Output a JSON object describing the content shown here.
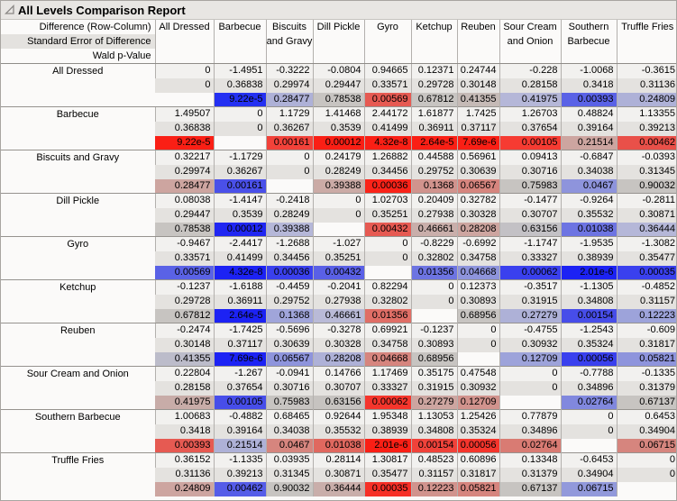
{
  "window": {
    "title": "All Levels Comparison Report"
  },
  "colors": {
    "titlebar_bg": "#e8e6e3",
    "diff_row_bg": "#f2f1ef",
    "se_row_bg": "#e4e2df",
    "neutral_p_bg": "#c7c4c1",
    "max_red": "#fa1f15",
    "max_blue": "#1c22f4"
  },
  "table": {
    "corner_lines": [
      "Difference (Row-Column)",
      "Standard Error of Difference",
      "Wald p-Value"
    ],
    "columns": [
      "All Dressed",
      "Barbecue",
      "Biscuits and Gravy",
      "Dill Pickle",
      "Gyro",
      "Ketchup",
      "Reuben",
      "Sour Cream and Onion",
      "Southern Barbecue",
      "Truffle Fries"
    ],
    "rows": [
      {
        "label": "All Dressed",
        "d": [
          "0",
          "-1.4951",
          "-0.3222",
          "-0.0804",
          "0.94665",
          "0.12371",
          "0.24744",
          "-0.228",
          "-1.0068",
          "-0.3615"
        ],
        "se": [
          "0",
          "0.36838",
          "0.29974",
          "0.29447",
          "0.33571",
          "0.29728",
          "0.30148",
          "0.28158",
          "0.3418",
          "0.31136"
        ],
        "p": [
          "",
          "9.22e-5",
          "0.28477",
          "0.78538",
          "0.00569",
          "0.67812",
          "0.41355",
          "0.41975",
          "0.00393",
          "0.24809"
        ],
        "pc": [
          "",
          "#2430f2",
          "#aeb1d7",
          "#c7c4c1",
          "#e65a52",
          "#c7c4c1",
          "#c5bab6",
          "#b5b7d8",
          "#5a62e6",
          "#aeb1d7"
        ]
      },
      {
        "label": "Barbecue",
        "d": [
          "1.49507",
          "0",
          "1.1729",
          "1.41468",
          "2.44172",
          "1.61877",
          "1.7425",
          "1.26703",
          "0.48824",
          "1.13355"
        ],
        "se": [
          "0.36838",
          "0",
          "0.36267",
          "0.3539",
          "0.41499",
          "0.36911",
          "0.37117",
          "0.37654",
          "0.39164",
          "0.39213"
        ],
        "p": [
          "9.22e-5",
          "",
          "0.00161",
          "0.00012",
          "4.32e-8",
          "2.64e-5",
          "7.69e-6",
          "0.00105",
          "0.21514",
          "0.00462"
        ],
        "pc": [
          "#fa1f15",
          "",
          "#f2423a",
          "#fa1f15",
          "#fa1f15",
          "#fa1f15",
          "#fa1f15",
          "#f63b32",
          "#cda5a0",
          "#e95049"
        ]
      },
      {
        "label": "Biscuits and Gravy",
        "d": [
          "0.32217",
          "-1.1729",
          "0",
          "0.24179",
          "1.26882",
          "0.44588",
          "0.56961",
          "0.09413",
          "-0.6847",
          "-0.0393"
        ],
        "se": [
          "0.29974",
          "0.36267",
          "0",
          "0.28249",
          "0.34456",
          "0.29752",
          "0.30639",
          "0.30716",
          "0.34038",
          "0.31345"
        ],
        "p": [
          "0.28477",
          "0.00161",
          "",
          "0.39388",
          "0.00036",
          "0.1368",
          "0.06567",
          "0.75983",
          "0.0467",
          "0.90032"
        ],
        "pc": [
          "#cda5a0",
          "#4a50e9",
          "",
          "#cbaba6",
          "#fa2319",
          "#d1938d",
          "#d6857e",
          "#c7c4c1",
          "#8e94dc",
          "#c7c4c1"
        ]
      },
      {
        "label": "Dill Pickle",
        "d": [
          "0.08038",
          "-1.4147",
          "-0.2418",
          "0",
          "1.02703",
          "0.20409",
          "0.32782",
          "-0.1477",
          "-0.9264",
          "-0.2811"
        ],
        "se": [
          "0.29447",
          "0.3539",
          "0.28249",
          "0",
          "0.35251",
          "0.27938",
          "0.30328",
          "0.30707",
          "0.35532",
          "0.30871"
        ],
        "p": [
          "0.78538",
          "0.00012",
          "0.39388",
          "",
          "0.00432",
          "0.46661",
          "0.28208",
          "0.63156",
          "0.01038",
          "0.36444"
        ],
        "pc": [
          "#c7c4c1",
          "#2026f2",
          "#b5b7d8",
          "",
          "#e65a52",
          "#c9aeaa",
          "#cda5a0",
          "#c3c1c5",
          "#6d74e2",
          "#b5b7d8"
        ]
      },
      {
        "label": "Gyro",
        "d": [
          "-0.9467",
          "-2.4417",
          "-1.2688",
          "-1.027",
          "0",
          "-0.8229",
          "-0.6992",
          "-1.1747",
          "-1.9535",
          "-1.3082"
        ],
        "se": [
          "0.33571",
          "0.41499",
          "0.34456",
          "0.35251",
          "0",
          "0.32802",
          "0.34758",
          "0.33327",
          "0.38939",
          "0.35477"
        ],
        "p": [
          "0.00569",
          "4.32e-8",
          "0.00036",
          "0.00432",
          "",
          "0.01356",
          "0.04668",
          "0.00062",
          "2.01e-6",
          "0.00035"
        ],
        "pc": [
          "#5a62e6",
          "#1c22f4",
          "#3a40ee",
          "#5a60e6",
          "",
          "#6d74e2",
          "#8e94dc",
          "#3a40ee",
          "#1c22f4",
          "#3a40ee"
        ]
      },
      {
        "label": "Ketchup",
        "d": [
          "-0.1237",
          "-1.6188",
          "-0.4459",
          "-0.2041",
          "0.82294",
          "0",
          "0.12373",
          "-0.3517",
          "-1.1305",
          "-0.4852"
        ],
        "se": [
          "0.29728",
          "0.36911",
          "0.29752",
          "0.27938",
          "0.32802",
          "0",
          "0.30893",
          "0.31915",
          "0.34808",
          "0.31157"
        ],
        "p": [
          "0.67812",
          "2.64e-5",
          "0.1368",
          "0.46661",
          "0.01356",
          "",
          "0.68956",
          "0.27279",
          "0.00154",
          "0.12223"
        ],
        "pc": [
          "#c7c4c1",
          "#1c22f4",
          "#a0a5da",
          "#b9bad7",
          "#e06e66",
          "",
          "#c7c4c1",
          "#aeb1d7",
          "#474de9",
          "#9da3da"
        ]
      },
      {
        "label": "Reuben",
        "d": [
          "-0.2474",
          "-1.7425",
          "-0.5696",
          "-0.3278",
          "0.69921",
          "-0.1237",
          "0",
          "-0.4755",
          "-1.2543",
          "-0.609"
        ],
        "se": [
          "0.30148",
          "0.37117",
          "0.30639",
          "0.30328",
          "0.34758",
          "0.30893",
          "0",
          "0.30932",
          "0.35324",
          "0.31817"
        ],
        "p": [
          "0.41355",
          "7.69e-6",
          "0.06567",
          "0.28208",
          "0.04668",
          "0.68956",
          "",
          "0.12709",
          "0.00056",
          "0.05821"
        ],
        "pc": [
          "#bcbcca",
          "#1c22f4",
          "#8e94dc",
          "#aeb1d7",
          "#d6857e",
          "#c7c4c1",
          "",
          "#9da3da",
          "#3a40ee",
          "#8e94dc"
        ]
      },
      {
        "label": "Sour Cream and Onion",
        "d": [
          "0.22804",
          "-1.267",
          "-0.0941",
          "0.14766",
          "1.17469",
          "0.35175",
          "0.47548",
          "0",
          "-0.7788",
          "-0.1335"
        ],
        "se": [
          "0.28158",
          "0.37654",
          "0.30716",
          "0.30707",
          "0.33327",
          "0.31915",
          "0.30932",
          "0",
          "0.34896",
          "0.31379"
        ],
        "p": [
          "0.41975",
          "0.00105",
          "0.75983",
          "0.63156",
          "0.00062",
          "0.27279",
          "0.12709",
          "",
          "0.02764",
          "0.67137"
        ],
        "pc": [
          "#c8aca8",
          "#474de9",
          "#c7c4c1",
          "#c6c3c0",
          "#f5352c",
          "#cda5a0",
          "#d1938d",
          "",
          "#8188de",
          "#c7c4c1"
        ]
      },
      {
        "label": "Southern Barbecue",
        "d": [
          "1.00683",
          "-0.4882",
          "0.68465",
          "0.92644",
          "1.95348",
          "1.13053",
          "1.25426",
          "0.77879",
          "0",
          "0.6453"
        ],
        "se": [
          "0.3418",
          "0.39164",
          "0.34038",
          "0.35532",
          "0.38939",
          "0.34808",
          "0.35324",
          "0.34896",
          "0",
          "0.34904"
        ],
        "p": [
          "0.00393",
          "0.21514",
          "0.0467",
          "0.01038",
          "2.01e-6",
          "0.00154",
          "0.00056",
          "0.02764",
          "",
          "0.06715"
        ],
        "pc": [
          "#e65a52",
          "#aeb1d7",
          "#d6857e",
          "#e0685f",
          "#fa1f15",
          "#f0423a",
          "#f5352c",
          "#d97b73",
          "",
          "#d6857e"
        ]
      },
      {
        "label": "Truffle Fries",
        "d": [
          "0.36152",
          "-1.1335",
          "0.03935",
          "0.28114",
          "1.30817",
          "0.48523",
          "0.60896",
          "0.13348",
          "-0.6453",
          "0"
        ],
        "se": [
          "0.31136",
          "0.39213",
          "0.31345",
          "0.30871",
          "0.35477",
          "0.31157",
          "0.31817",
          "0.31379",
          "0.34904",
          "0"
        ],
        "p": [
          "0.24809",
          "0.00462",
          "0.90032",
          "0.36444",
          "0.00035",
          "0.12223",
          "0.05821",
          "0.67137",
          "0.06715",
          ""
        ],
        "pc": [
          "#cda5a0",
          "#555ce8",
          "#c7c4c1",
          "#c9aeaa",
          "#f62f26",
          "#d1938d",
          "#d6857e",
          "#c7c4c1",
          "#9299db",
          ""
        ]
      }
    ]
  }
}
